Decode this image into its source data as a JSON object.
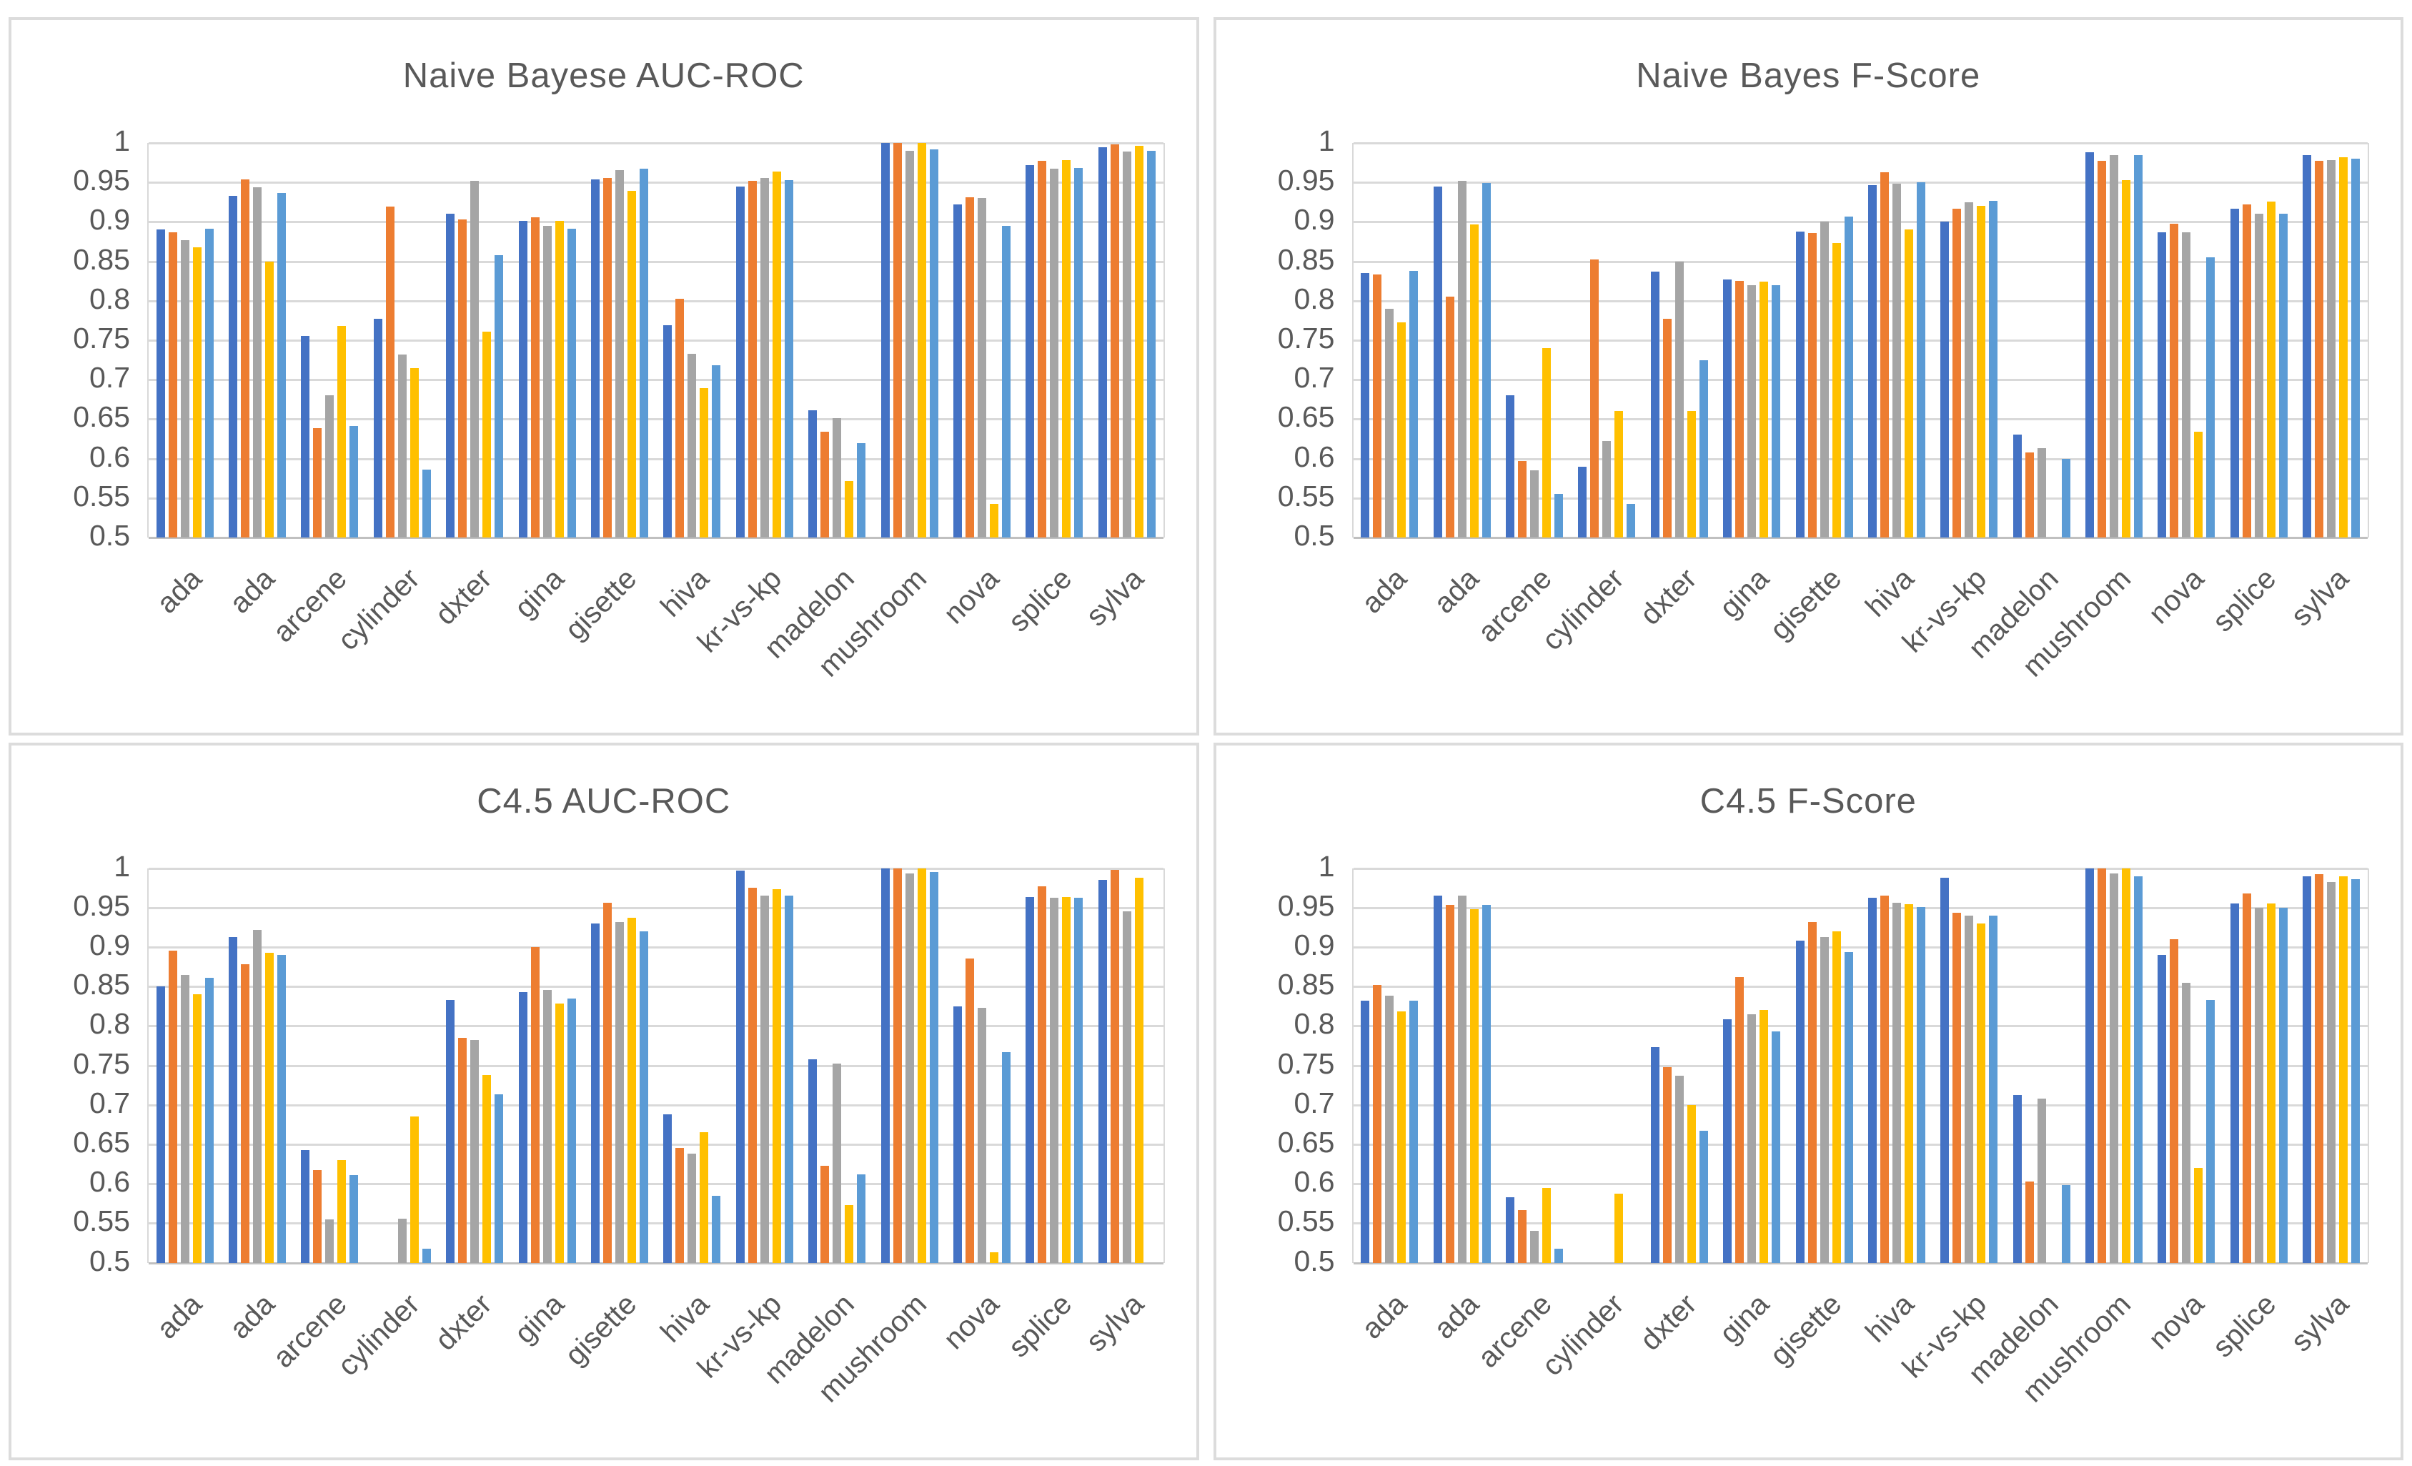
{
  "page": {
    "background": "#ffffff",
    "panel_border_color": "#dcdcdc",
    "gridline_color": "#d9d9d9",
    "text_color": "#595959"
  },
  "series_colors": {
    "blue": "#4472C4",
    "orange": "#ED7D31",
    "gray": "#A5A5A5",
    "yellow": "#FFC000",
    "light-blue": "#5B9BD5"
  },
  "chart_data": [
    {
      "type": "bar",
      "title": "Naive Bayese AUC-ROC",
      "ylim": [
        0.5,
        1.0
      ],
      "grid": true,
      "legend": "none",
      "y_ticks": [
        "1",
        "0.95",
        "0.9",
        "0.85",
        "0.8",
        "0.75",
        "0.7",
        "0.65",
        "0.6",
        "0.55",
        "0.5"
      ],
      "categories": [
        "ada",
        "ada",
        "arcene",
        "cylinder",
        "dxter",
        "gina",
        "gisette",
        "hiva",
        "kr-vs-kp",
        "madelon",
        "mushroom",
        "nova",
        "splice",
        "sylva"
      ],
      "series": [
        {
          "name": "blue",
          "color": "#4472C4",
          "values": [
            0.89,
            0.933,
            0.755,
            0.777,
            0.91,
            0.901,
            0.954,
            0.769,
            0.945,
            0.661,
            1.0,
            0.922,
            0.972,
            0.995
          ]
        },
        {
          "name": "orange",
          "color": "#ED7D31",
          "values": [
            0.887,
            0.954,
            0.639,
            0.919,
            0.903,
            0.906,
            0.956,
            0.803,
            0.952,
            0.634,
            1.0,
            0.931,
            0.977,
            0.998
          ]
        },
        {
          "name": "gray",
          "color": "#A5A5A5",
          "values": [
            0.877,
            0.944,
            0.68,
            0.732,
            0.952,
            0.895,
            0.966,
            0.733,
            0.956,
            0.651,
            0.99,
            0.93,
            0.967,
            0.989
          ]
        },
        {
          "name": "yellow",
          "color": "#FFC000",
          "values": [
            0.868,
            0.85,
            0.768,
            0.715,
            0.761,
            0.901,
            0.939,
            0.689,
            0.964,
            0.572,
            1.0,
            0.543,
            0.978,
            0.996
          ]
        },
        {
          "name": "light-blue",
          "color": "#5B9BD5",
          "values": [
            0.891,
            0.937,
            0.641,
            0.586,
            0.858,
            0.891,
            0.967,
            0.718,
            0.953,
            0.62,
            0.992,
            0.895,
            0.968,
            0.99
          ]
        }
      ]
    },
    {
      "type": "bar",
      "title": "Naive Bayes F-Score",
      "ylim": [
        0.5,
        1.0
      ],
      "grid": true,
      "legend": "none",
      "y_ticks": [
        "1",
        "0.95",
        "0.9",
        "0.85",
        "0.8",
        "0.75",
        "0.7",
        "0.65",
        "0.6",
        "0.55",
        "0.5"
      ],
      "categories": [
        "ada",
        "ada",
        "arcene",
        "cylinder",
        "dxter",
        "gina",
        "gisette",
        "hiva",
        "kr-vs-kp",
        "madelon",
        "mushroom",
        "nova",
        "splice",
        "sylva"
      ],
      "series": [
        {
          "name": "blue",
          "color": "#4472C4",
          "values": [
            0.835,
            0.945,
            0.68,
            0.59,
            0.837,
            0.827,
            0.888,
            0.947,
            0.9,
            0.63,
            0.988,
            0.887,
            0.917,
            0.985
          ]
        },
        {
          "name": "orange",
          "color": "#ED7D31",
          "values": [
            0.833,
            0.805,
            0.597,
            0.852,
            0.777,
            0.825,
            0.886,
            0.963,
            0.917,
            0.608,
            0.977,
            0.898,
            0.922,
            0.977
          ]
        },
        {
          "name": "gray",
          "color": "#A5A5A5",
          "values": [
            0.79,
            0.952,
            0.585,
            0.622,
            0.85,
            0.82,
            0.9,
            0.948,
            0.925,
            0.613,
            0.985,
            0.887,
            0.91,
            0.978
          ]
        },
        {
          "name": "yellow",
          "color": "#FFC000",
          "values": [
            0.773,
            0.897,
            0.74,
            0.66,
            0.66,
            0.824,
            0.873,
            0.89,
            0.92,
            0.5,
            0.953,
            0.634,
            0.926,
            0.982
          ]
        },
        {
          "name": "light-blue",
          "color": "#5B9BD5",
          "values": [
            0.838,
            0.949,
            0.555,
            0.543,
            0.725,
            0.82,
            0.907,
            0.95,
            0.927,
            0.6,
            0.985,
            0.855,
            0.91,
            0.98
          ]
        }
      ]
    },
    {
      "type": "bar",
      "title": "C4.5 AUC-ROC",
      "ylim": [
        0.5,
        1.0
      ],
      "grid": true,
      "legend": "none",
      "y_ticks": [
        "1",
        "0.95",
        "0.9",
        "0.85",
        "0.8",
        "0.75",
        "0.7",
        "0.65",
        "0.6",
        "0.55",
        "0.5"
      ],
      "categories": [
        "ada",
        "ada",
        "arcene",
        "cylinder",
        "dxter",
        "gina",
        "gisette",
        "hiva",
        "kr-vs-kp",
        "madelon",
        "mushroom",
        "nova",
        "splice",
        "sylva"
      ],
      "series": [
        {
          "name": "blue",
          "color": "#4472C4",
          "values": [
            0.85,
            0.913,
            0.643,
            0.5,
            0.833,
            0.843,
            0.93,
            0.688,
            0.997,
            0.758,
            1.0,
            0.825,
            0.963,
            0.985
          ]
        },
        {
          "name": "orange",
          "color": "#ED7D31",
          "values": [
            0.895,
            0.878,
            0.617,
            0.5,
            0.785,
            0.9,
            0.956,
            0.645,
            0.975,
            0.623,
            1.0,
            0.885,
            0.977,
            0.998
          ]
        },
        {
          "name": "gray",
          "color": "#A5A5A5",
          "values": [
            0.865,
            0.922,
            0.555,
            0.556,
            0.782,
            0.846,
            0.932,
            0.638,
            0.965,
            0.752,
            0.993,
            0.823,
            0.962,
            0.945
          ]
        },
        {
          "name": "yellow",
          "color": "#FFC000",
          "values": [
            0.84,
            0.893,
            0.63,
            0.685,
            0.738,
            0.828,
            0.937,
            0.665,
            0.973,
            0.573,
            1.0,
            0.513,
            0.963,
            0.988
          ]
        },
        {
          "name": "light-blue",
          "color": "#5B9BD5",
          "values": [
            0.861,
            0.89,
            0.611,
            0.518,
            0.713,
            0.835,
            0.92,
            0.585,
            0.965,
            0.612,
            0.995,
            0.767,
            0.962,
            0.5
          ]
        }
      ]
    },
    {
      "type": "bar",
      "title": "C4.5 F-Score",
      "ylim": [
        0.5,
        1.0
      ],
      "grid": true,
      "legend": "none",
      "y_ticks": [
        "1",
        "0.95",
        "0.9",
        "0.85",
        "0.8",
        "0.75",
        "0.7",
        "0.65",
        "0.6",
        "0.55",
        "0.5"
      ],
      "categories": [
        "ada",
        "ada",
        "arcene",
        "cylinder",
        "dxter",
        "gina",
        "gisette",
        "hiva",
        "kr-vs-kp",
        "madelon",
        "mushroom",
        "nova",
        "splice",
        "sylva"
      ],
      "series": [
        {
          "name": "blue",
          "color": "#4472C4",
          "values": [
            0.832,
            0.965,
            0.583,
            0.5,
            0.773,
            0.808,
            0.908,
            0.962,
            0.988,
            0.712,
            1.0,
            0.89,
            0.955,
            0.99
          ]
        },
        {
          "name": "orange",
          "color": "#ED7D31",
          "values": [
            0.852,
            0.953,
            0.567,
            0.5,
            0.748,
            0.862,
            0.932,
            0.965,
            0.943,
            0.603,
            1.0,
            0.91,
            0.968,
            0.992
          ]
        },
        {
          "name": "gray",
          "color": "#A5A5A5",
          "values": [
            0.838,
            0.965,
            0.54,
            0.5,
            0.737,
            0.815,
            0.913,
            0.956,
            0.94,
            0.708,
            0.993,
            0.855,
            0.95,
            0.982
          ]
        },
        {
          "name": "yellow",
          "color": "#FFC000",
          "values": [
            0.818,
            0.948,
            0.595,
            0.587,
            0.7,
            0.82,
            0.92,
            0.954,
            0.93,
            0.5,
            1.0,
            0.62,
            0.955,
            0.99
          ]
        },
        {
          "name": "light-blue",
          "color": "#5B9BD5",
          "values": [
            0.832,
            0.953,
            0.518,
            0.5,
            0.667,
            0.793,
            0.894,
            0.951,
            0.94,
            0.598,
            0.99,
            0.833,
            0.95,
            0.986
          ]
        }
      ]
    }
  ]
}
